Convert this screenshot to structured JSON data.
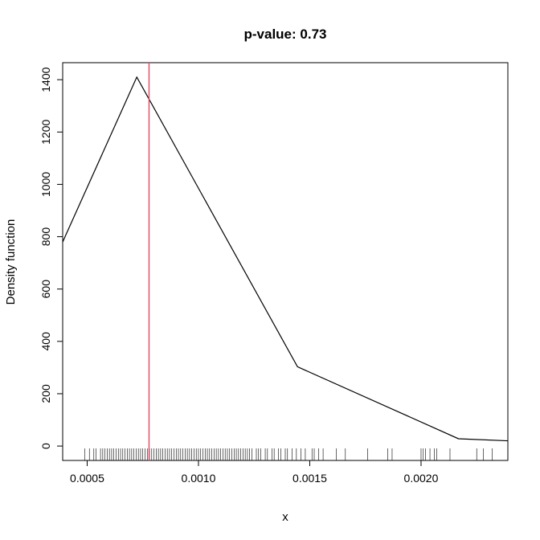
{
  "chart_data": {
    "type": "line",
    "title": "p-value: 0.73",
    "xlabel": "x",
    "ylabel": "Density function",
    "xlim": [
      0.00039,
      0.00239
    ],
    "ylim": [
      -55,
      1465
    ],
    "x_ticks": [
      0.0005,
      0.001,
      0.0015,
      0.002
    ],
    "x_tick_labels": [
      "0.0005",
      "0.0010",
      "0.0015",
      "0.0020"
    ],
    "y_ticks": [
      0,
      200,
      400,
      600,
      800,
      1000,
      1200,
      1400
    ],
    "y_tick_labels": [
      "0",
      "200",
      "400",
      "600",
      "800",
      "1000",
      "1200",
      "1400"
    ],
    "grid": false,
    "series": [
      {
        "x": [
          0.00039,
          0.000723,
          0.001445,
          0.002168,
          0.00239
        ],
        "y": [
          780,
          1410,
          303,
          28,
          20
        ],
        "color": "#000000"
      }
    ],
    "vertical_line": {
      "x": 0.000778,
      "color": "#df536b"
    },
    "rug": [
      0.00049,
      0.00051,
      0.00053,
      0.00054,
      0.00056,
      0.00057,
      0.00058,
      0.00059,
      0.0006,
      0.00061,
      0.00062,
      0.00063,
      0.00064,
      0.00065,
      0.00066,
      0.00067,
      0.00068,
      0.00069,
      0.0007,
      0.00071,
      0.00072,
      0.00073,
      0.00074,
      0.00075,
      0.00076,
      0.00077,
      0.00078,
      0.00079,
      0.0008,
      0.00081,
      0.00082,
      0.00083,
      0.00084,
      0.00085,
      0.00086,
      0.00087,
      0.00088,
      0.00089,
      0.0009,
      0.00091,
      0.00092,
      0.00093,
      0.00094,
      0.00095,
      0.00096,
      0.00097,
      0.00098,
      0.00099,
      0.001,
      0.00101,
      0.00102,
      0.00103,
      0.00104,
      0.00105,
      0.00106,
      0.00107,
      0.00108,
      0.00109,
      0.0011,
      0.00111,
      0.00112,
      0.00113,
      0.00114,
      0.00115,
      0.00116,
      0.00117,
      0.00118,
      0.00119,
      0.0012,
      0.00121,
      0.00122,
      0.00123,
      0.00124,
      0.00126,
      0.00127,
      0.00128,
      0.0013,
      0.00131,
      0.00133,
      0.00134,
      0.00136,
      0.00137,
      0.00139,
      0.0014,
      0.00142,
      0.00144,
      0.00146,
      0.00148,
      0.00151,
      0.00152,
      0.00154,
      0.00156,
      0.00162,
      0.00166,
      0.00176,
      0.00185,
      0.00187,
      0.002,
      0.00201,
      0.00202,
      0.00204,
      0.00206,
      0.00207,
      0.00213,
      0.00225,
      0.00228,
      0.00232
    ],
    "colors": {
      "curve": "#000000",
      "marker_line": "#df536b",
      "axes": "#000000"
    }
  }
}
